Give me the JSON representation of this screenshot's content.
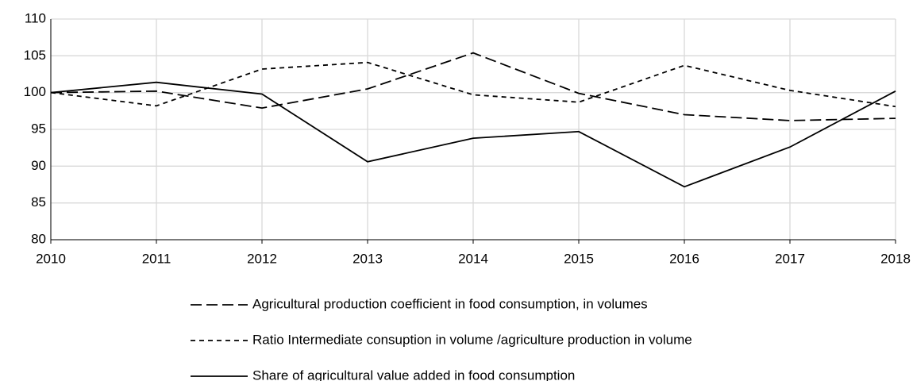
{
  "chart_data": {
    "type": "line",
    "x": [
      2010,
      2011,
      2012,
      2013,
      2014,
      2015,
      2016,
      2017,
      2018
    ],
    "series": [
      {
        "name": "Agricultural production coefficient in food consumption, in volumes",
        "color": "#000000",
        "style": "long-dash",
        "values": [
          100,
          100.2,
          97.9,
          100.5,
          105.4,
          99.9,
          97.0,
          96.2,
          96.5
        ]
      },
      {
        "name": "Ratio Intermediate consuption in volume /agriculture production in volume",
        "color": "#000000",
        "style": "short-dash",
        "values": [
          100,
          98.2,
          103.2,
          104.1,
          99.7,
          98.7,
          103.7,
          100.3,
          98.1
        ]
      },
      {
        "name": "Share of agricultural value added in food consumption",
        "color": "#000000",
        "style": "solid",
        "values": [
          100,
          101.4,
          99.8,
          90.6,
          93.8,
          94.7,
          87.2,
          92.6,
          100.2
        ]
      }
    ],
    "xlim": [
      2010,
      2018
    ],
    "xticks": [
      2010,
      2011,
      2012,
      2013,
      2014,
      2015,
      2016,
      2017,
      2018
    ],
    "ylim": [
      80,
      110
    ],
    "yticks": [
      80,
      85,
      90,
      95,
      100,
      105,
      110
    ],
    "grid": true,
    "legend": "bottom"
  }
}
